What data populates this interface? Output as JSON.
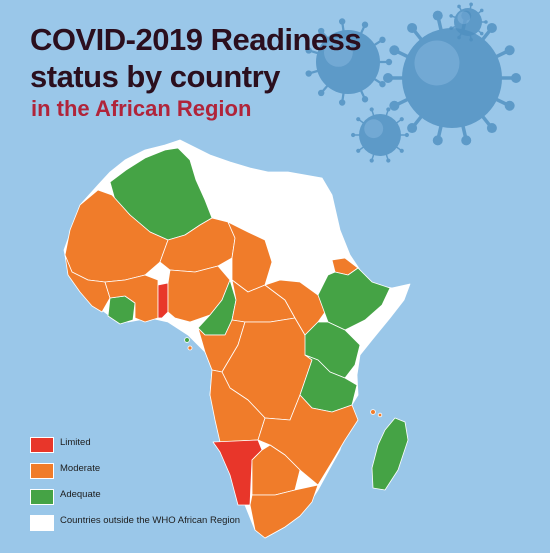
{
  "title": {
    "line1": "COVID-2019 Readiness",
    "line2": "status by country",
    "subtitle": "in the African Region"
  },
  "colors": {
    "ocean": "#9ac7e9",
    "limited": "#e8362a",
    "moderate": "#f07c2a",
    "adequate": "#45a345",
    "outside": "#ffffff",
    "title": "#2b0f1e",
    "subtitle": "#b0243a",
    "virus": "#4f8fc0"
  },
  "legend": [
    {
      "key": "limited",
      "label": "Limited"
    },
    {
      "key": "moderate",
      "label": "Moderate"
    },
    {
      "key": "adequate",
      "label": "Adequate"
    },
    {
      "key": "outside",
      "label": "Countries outside the WHO African Region"
    }
  ],
  "map": {
    "subject": "africa-continent",
    "decoration": "coronavirus-particles",
    "status_by_country": {
      "algeria": "adequate",
      "mauritania": "moderate",
      "mali": "moderate",
      "niger": "moderate",
      "chad": "moderate",
      "senegal": "moderate",
      "guinea": "moderate",
      "sierra-leone": "moderate",
      "liberia": "adequate",
      "cote-divoire": "moderate",
      "ghana": "moderate",
      "togo": "limited",
      "benin": "limited",
      "nigeria": "moderate",
      "cameroon": "adequate",
      "central-african-republic": "moderate",
      "south-sudan": "moderate",
      "ethiopia": "adequate",
      "eritrea": "moderate",
      "kenya": "adequate",
      "uganda": "adequate",
      "rwanda": "adequate",
      "burundi": "adequate",
      "tanzania": "adequate",
      "gabon": "moderate",
      "congo": "moderate",
      "dr-congo": "moderate",
      "angola": "moderate",
      "zambia": "moderate",
      "malawi": "moderate",
      "mozambique": "moderate",
      "zimbabwe": "moderate",
      "botswana": "moderate",
      "namibia": "limited",
      "south-africa": "moderate",
      "madagascar": "adequate",
      "comoros": "moderate",
      "seychelles": "moderate",
      "sao-tome": "adequate",
      "morocco": "outside",
      "western-sahara": "outside",
      "tunisia": "outside",
      "libya": "outside",
      "egypt": "outside",
      "sudan": "outside",
      "djibouti": "outside",
      "somalia": "outside"
    }
  }
}
